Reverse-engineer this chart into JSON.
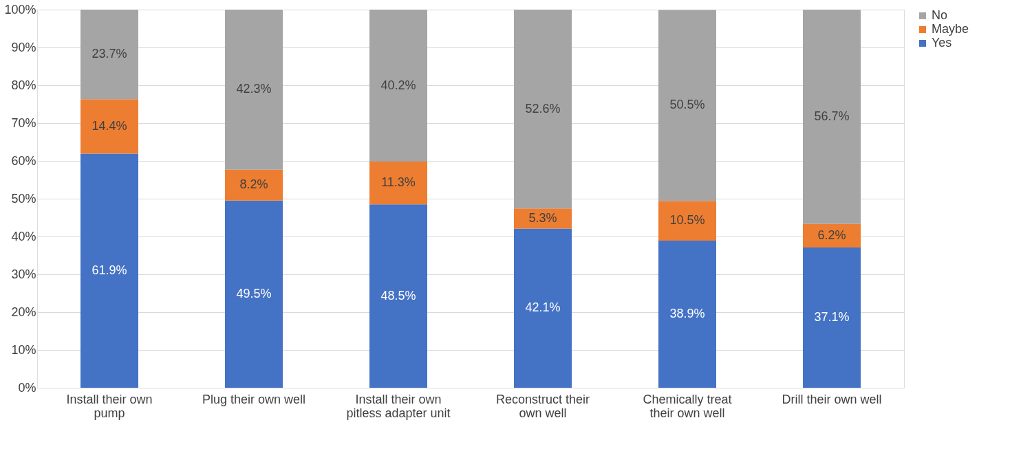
{
  "chart_data": {
    "type": "bar",
    "stacked": true,
    "categories": [
      "Install their own pump",
      "Plug their own well",
      "Install their own pitless adapter unit",
      "Reconstruct their own well",
      "Chemically treat their own well",
      "Drill their own well"
    ],
    "series": [
      {
        "name": "Yes",
        "color": "#4472c4",
        "values": [
          61.9,
          49.5,
          48.5,
          42.1,
          38.9,
          37.1
        ],
        "value_labels": [
          "61.9%",
          "49.5%",
          "48.5%",
          "42.1%",
          "38.9%",
          "37.1%"
        ]
      },
      {
        "name": "Maybe",
        "color": "#ed7d31",
        "values": [
          14.4,
          8.2,
          11.3,
          5.3,
          10.5,
          6.2
        ],
        "value_labels": [
          "14.4%",
          "8.2%",
          "11.3%",
          "5.3%",
          "10.5%",
          "6.2%"
        ]
      },
      {
        "name": "No",
        "color": "#a5a5a5",
        "values": [
          23.7,
          42.3,
          40.2,
          52.6,
          50.5,
          56.7
        ],
        "value_labels": [
          "23.7%",
          "42.3%",
          "40.2%",
          "52.6%",
          "50.5%",
          "56.7%"
        ]
      }
    ],
    "ylim": [
      0,
      100
    ],
    "yticks": [
      {
        "value": 0,
        "label": "0%"
      },
      {
        "value": 10,
        "label": "10%"
      },
      {
        "value": 20,
        "label": "20%"
      },
      {
        "value": 30,
        "label": "30%"
      },
      {
        "value": 40,
        "label": "40%"
      },
      {
        "value": 50,
        "label": "50%"
      },
      {
        "value": 60,
        "label": "60%"
      },
      {
        "value": 70,
        "label": "70%"
      },
      {
        "value": 80,
        "label": "80%"
      },
      {
        "value": 90,
        "label": "90%"
      },
      {
        "value": 100,
        "label": "100%"
      }
    ],
    "grid": "y",
    "legend": "right"
  }
}
